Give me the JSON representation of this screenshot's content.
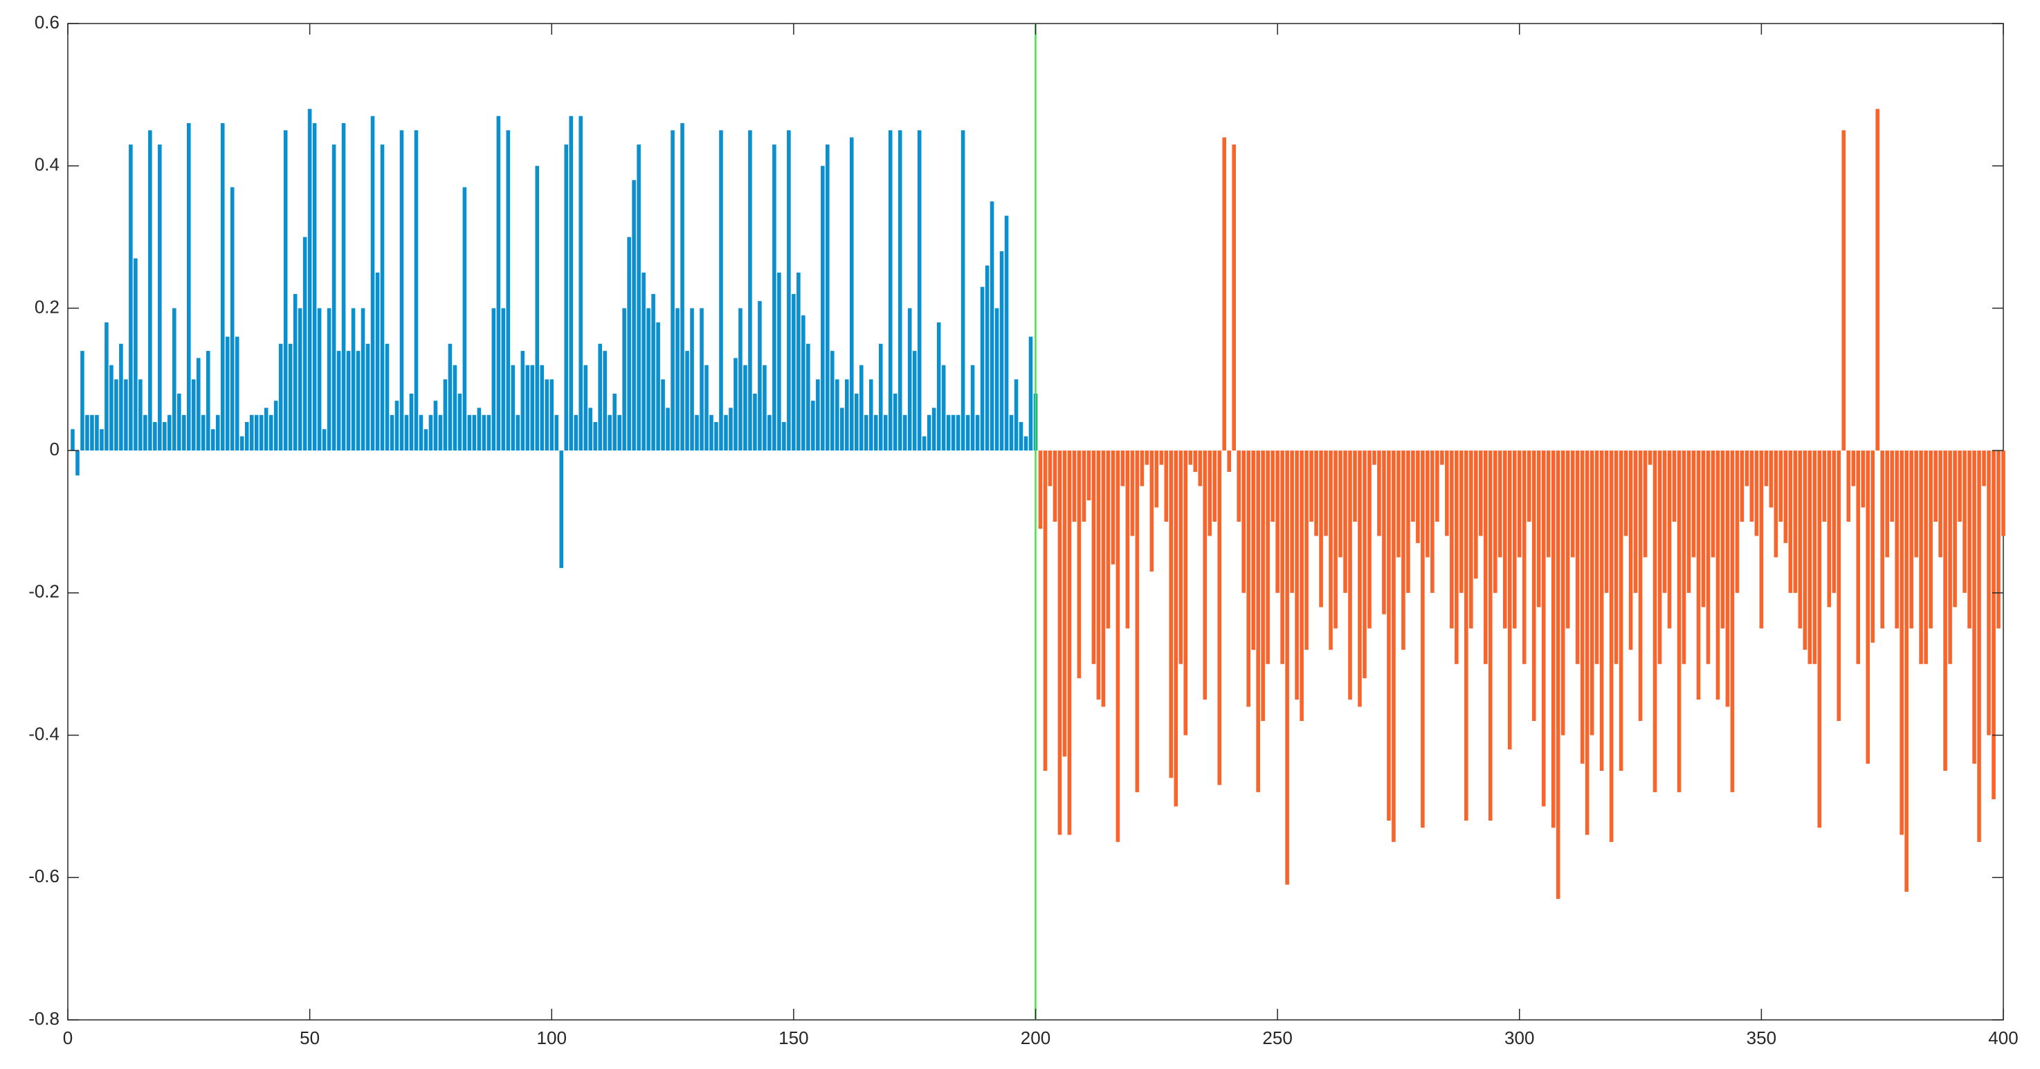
{
  "chart_data": {
    "type": "bar",
    "xlim": [
      0,
      400
    ],
    "xticks": [
      0,
      50,
      100,
      150,
      200,
      250,
      300,
      350,
      400
    ],
    "ylim": [
      -0.8,
      0.6
    ],
    "yticks": [
      -0.8,
      -0.6,
      -0.4,
      -0.2,
      0,
      0.2,
      0.4,
      0.6
    ],
    "vline": {
      "x": 200,
      "color": "#3ee83e"
    },
    "series": [
      {
        "color": "#0a8fcf",
        "x": [
          1,
          2,
          3,
          4,
          5,
          6,
          7,
          8,
          9,
          10,
          11,
          12,
          13,
          14,
          15,
          16,
          17,
          18,
          19,
          20,
          21,
          22,
          23,
          24,
          25,
          26,
          27,
          28,
          29,
          30,
          31,
          32,
          33,
          34,
          35,
          36,
          37,
          38,
          39,
          40,
          41,
          42,
          43,
          44,
          45,
          46,
          47,
          48,
          49,
          50,
          51,
          52,
          53,
          54,
          55,
          56,
          57,
          58,
          59,
          60,
          61,
          62,
          63,
          64,
          65,
          66,
          67,
          68,
          69,
          70,
          71,
          72,
          73,
          74,
          75,
          76,
          77,
          78,
          79,
          80,
          81,
          82,
          83,
          84,
          85,
          86,
          87,
          88,
          89,
          90,
          91,
          92,
          93,
          94,
          95,
          96,
          97,
          98,
          99,
          100,
          101,
          102,
          103,
          104,
          105,
          106,
          107,
          108,
          109,
          110,
          111,
          112,
          113,
          114,
          115,
          116,
          117,
          118,
          119,
          120,
          121,
          122,
          123,
          124,
          125,
          126,
          127,
          128,
          129,
          130,
          131,
          132,
          133,
          134,
          135,
          136,
          137,
          138,
          139,
          140,
          141,
          142,
          143,
          144,
          145,
          146,
          147,
          148,
          149,
          150,
          151,
          152,
          153,
          154,
          155,
          156,
          157,
          158,
          159,
          160,
          161,
          162,
          163,
          164,
          165,
          166,
          167,
          168,
          169,
          170,
          171,
          172,
          173,
          174,
          175,
          176,
          177,
          178,
          179,
          180,
          181,
          182,
          183,
          184,
          185,
          186,
          187,
          188,
          189,
          190,
          191,
          192,
          193,
          194,
          195,
          196,
          197,
          198,
          199,
          200
        ],
        "values": [
          0.03,
          -0.035,
          0.14,
          0.05,
          0.05,
          0.05,
          0.03,
          0.18,
          0.12,
          0.1,
          0.15,
          0.1,
          0.43,
          0.27,
          0.1,
          0.05,
          0.45,
          0.04,
          0.43,
          0.04,
          0.05,
          0.2,
          0.08,
          0.05,
          0.46,
          0.1,
          0.13,
          0.05,
          0.14,
          0.03,
          0.05,
          0.46,
          0.16,
          0.37,
          0.16,
          0.02,
          0.04,
          0.05,
          0.05,
          0.05,
          0.06,
          0.05,
          0.07,
          0.15,
          0.45,
          0.15,
          0.22,
          0.2,
          0.3,
          0.48,
          0.46,
          0.2,
          0.03,
          0.2,
          0.43,
          0.14,
          0.46,
          0.14,
          0.2,
          0.14,
          0.2,
          0.15,
          0.47,
          0.25,
          0.43,
          0.15,
          0.05,
          0.07,
          0.45,
          0.05,
          0.08,
          0.45,
          0.05,
          0.03,
          0.05,
          0.07,
          0.05,
          0.1,
          0.15,
          0.12,
          0.08,
          0.37,
          0.05,
          0.05,
          0.06,
          0.05,
          0.05,
          0.2,
          0.47,
          0.2,
          0.45,
          0.12,
          0.05,
          0.14,
          0.12,
          0.12,
          0.4,
          0.12,
          0.1,
          0.1,
          0.05,
          -0.165,
          0.43,
          0.47,
          0.05,
          0.47,
          0.12,
          0.06,
          0.04,
          0.15,
          0.14,
          0.05,
          0.08,
          0.05,
          0.2,
          0.3,
          0.38,
          0.43,
          0.25,
          0.2,
          0.22,
          0.18,
          0.1,
          0.06,
          0.45,
          0.2,
          0.46,
          0.14,
          0.2,
          0.05,
          0.2,
          0.12,
          0.05,
          0.04,
          0.45,
          0.05,
          0.06,
          0.13,
          0.2,
          0.12,
          0.45,
          0.08,
          0.21,
          0.12,
          0.05,
          0.43,
          0.25,
          0.04,
          0.45,
          0.22,
          0.25,
          0.19,
          0.15,
          0.07,
          0.1,
          0.4,
          0.43,
          0.14,
          0.1,
          0.06,
          0.1,
          0.44,
          0.08,
          0.12,
          0.05,
          0.1,
          0.05,
          0.15,
          0.05,
          0.45,
          0.08,
          0.45,
          0.05,
          0.2,
          0.14,
          0.45,
          0.02,
          0.05,
          0.06,
          0.18,
          0.12,
          0.05,
          0.05,
          0.05,
          0.45,
          0.05,
          0.12,
          0.05,
          0.23,
          0.26,
          0.35,
          0.2,
          0.28,
          0.33,
          0.05,
          0.1,
          0.04,
          0.02,
          0.16,
          0.08
        ]
      },
      {
        "color": "#f7642c",
        "x": [
          201,
          202,
          203,
          204,
          205,
          206,
          207,
          208,
          209,
          210,
          211,
          212,
          213,
          214,
          215,
          216,
          217,
          218,
          219,
          220,
          221,
          222,
          223,
          224,
          225,
          226,
          227,
          228,
          229,
          230,
          231,
          232,
          233,
          234,
          235,
          236,
          237,
          238,
          239,
          240,
          241,
          242,
          243,
          244,
          245,
          246,
          247,
          248,
          249,
          250,
          251,
          252,
          253,
          254,
          255,
          256,
          257,
          258,
          259,
          260,
          261,
          262,
          263,
          264,
          265,
          266,
          267,
          268,
          269,
          270,
          271,
          272,
          273,
          274,
          275,
          276,
          277,
          278,
          279,
          280,
          281,
          282,
          283,
          284,
          285,
          286,
          287,
          288,
          289,
          290,
          291,
          292,
          293,
          294,
          295,
          296,
          297,
          298,
          299,
          300,
          301,
          302,
          303,
          304,
          305,
          306,
          307,
          308,
          309,
          310,
          311,
          312,
          313,
          314,
          315,
          316,
          317,
          318,
          319,
          320,
          321,
          322,
          323,
          324,
          325,
          326,
          327,
          328,
          329,
          330,
          331,
          332,
          333,
          334,
          335,
          336,
          337,
          338,
          339,
          340,
          341,
          342,
          343,
          344,
          345,
          346,
          347,
          348,
          349,
          350,
          351,
          352,
          353,
          354,
          355,
          356,
          357,
          358,
          359,
          360,
          361,
          362,
          363,
          364,
          365,
          366,
          367,
          368,
          369,
          370,
          371,
          372,
          373,
          374,
          375,
          376,
          377,
          378,
          379,
          380,
          381,
          382,
          383,
          384,
          385,
          386,
          387,
          388,
          389,
          390,
          391,
          392,
          393,
          394,
          395,
          396,
          397,
          398,
          399,
          400
        ],
        "values": [
          -0.11,
          -0.45,
          -0.05,
          -0.1,
          -0.54,
          -0.43,
          -0.54,
          -0.1,
          -0.32,
          -0.1,
          -0.07,
          -0.3,
          -0.35,
          -0.36,
          -0.25,
          -0.16,
          -0.55,
          -0.05,
          -0.25,
          -0.12,
          -0.48,
          -0.05,
          -0.02,
          -0.17,
          -0.08,
          -0.02,
          -0.1,
          -0.46,
          -0.5,
          -0.3,
          -0.4,
          -0.02,
          -0.03,
          -0.05,
          -0.35,
          -0.12,
          -0.1,
          -0.47,
          0.44,
          -0.03,
          0.43,
          -0.1,
          -0.2,
          -0.36,
          -0.28,
          -0.48,
          -0.38,
          -0.3,
          -0.1,
          -0.2,
          -0.3,
          -0.61,
          -0.2,
          -0.35,
          -0.38,
          -0.28,
          -0.1,
          -0.12,
          -0.22,
          -0.12,
          -0.28,
          -0.25,
          -0.15,
          -0.2,
          -0.35,
          -0.1,
          -0.36,
          -0.32,
          -0.25,
          -0.02,
          -0.12,
          -0.23,
          -0.52,
          -0.55,
          -0.15,
          -0.28,
          -0.2,
          -0.1,
          -0.13,
          -0.53,
          -0.15,
          -0.2,
          -0.1,
          -0.02,
          -0.12,
          -0.25,
          -0.3,
          -0.2,
          -0.52,
          -0.25,
          -0.18,
          -0.12,
          -0.3,
          -0.52,
          -0.2,
          -0.15,
          -0.25,
          -0.42,
          -0.25,
          -0.15,
          -0.3,
          -0.1,
          -0.38,
          -0.22,
          -0.5,
          -0.15,
          -0.53,
          -0.63,
          -0.4,
          -0.25,
          -0.15,
          -0.3,
          -0.44,
          -0.54,
          -0.4,
          -0.3,
          -0.45,
          -0.2,
          -0.55,
          -0.3,
          -0.45,
          -0.12,
          -0.28,
          -0.2,
          -0.38,
          -0.15,
          -0.02,
          -0.48,
          -0.3,
          -0.2,
          -0.25,
          -0.1,
          -0.48,
          -0.3,
          -0.2,
          -0.15,
          -0.35,
          -0.22,
          -0.3,
          -0.15,
          -0.35,
          -0.25,
          -0.36,
          -0.48,
          -0.2,
          -0.1,
          -0.05,
          -0.1,
          -0.12,
          -0.25,
          -0.05,
          -0.08,
          -0.15,
          -0.1,
          -0.13,
          -0.2,
          -0.2,
          -0.25,
          -0.28,
          -0.3,
          -0.3,
          -0.53,
          -0.1,
          -0.22,
          -0.2,
          -0.38,
          0.45,
          -0.1,
          -0.05,
          -0.3,
          -0.08,
          -0.44,
          -0.27,
          0.48,
          -0.25,
          -0.15,
          -0.1,
          -0.25,
          -0.54,
          -0.62,
          -0.25,
          -0.15,
          -0.3,
          -0.3,
          -0.25,
          -0.1,
          -0.15,
          -0.45,
          -0.3,
          -0.22,
          -0.1,
          -0.2,
          -0.25,
          -0.44,
          -0.55,
          -0.05,
          -0.4,
          -0.49,
          -0.25,
          -0.12
        ]
      }
    ]
  }
}
